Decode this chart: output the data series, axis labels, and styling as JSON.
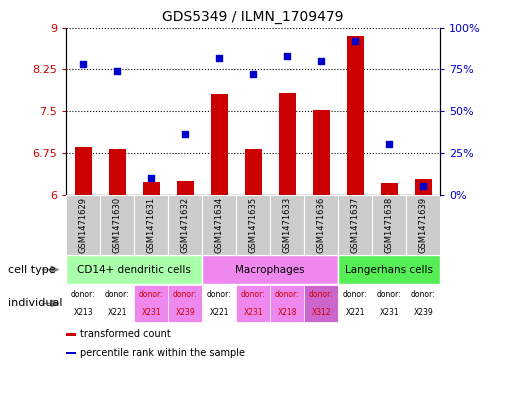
{
  "title": "GDS5349 / ILMN_1709479",
  "samples": [
    "GSM1471629",
    "GSM1471630",
    "GSM1471631",
    "GSM1471632",
    "GSM1471634",
    "GSM1471635",
    "GSM1471633",
    "GSM1471636",
    "GSM1471637",
    "GSM1471638",
    "GSM1471639"
  ],
  "transformed_count": [
    6.85,
    6.82,
    6.22,
    6.25,
    7.8,
    6.82,
    7.82,
    7.52,
    8.85,
    6.2,
    6.28
  ],
  "percentile_rank": [
    78,
    74,
    10,
    36,
    82,
    72,
    83,
    80,
    92,
    30,
    5
  ],
  "ylim_left": [
    6,
    9
  ],
  "ylim_right": [
    0,
    100
  ],
  "yticks_left": [
    6,
    6.75,
    7.5,
    8.25,
    9
  ],
  "yticks_right": [
    0,
    25,
    50,
    75,
    100
  ],
  "ytick_labels_left": [
    "6",
    "6.75",
    "7.5",
    "8.25",
    "9"
  ],
  "ytick_labels_right": [
    "0%",
    "25%",
    "50%",
    "75%",
    "100%"
  ],
  "bar_color": "#cc0000",
  "dot_color": "#0000cc",
  "cell_types": [
    {
      "label": "CD14+ dendritic cells",
      "start": 0,
      "end": 3,
      "color": "#aaffaa"
    },
    {
      "label": "Macrophages",
      "start": 4,
      "end": 7,
      "color": "#ee88ee"
    },
    {
      "label": "Langerhans cells",
      "start": 8,
      "end": 10,
      "color": "#55ee55"
    }
  ],
  "individuals": [
    {
      "donor": "X213",
      "col": 0,
      "color": "#ffffff",
      "text_color": "#000000"
    },
    {
      "donor": "X221",
      "col": 1,
      "color": "#ffffff",
      "text_color": "#000000"
    },
    {
      "donor": "X231",
      "col": 2,
      "color": "#ee88ee",
      "text_color": "#cc0000"
    },
    {
      "donor": "X239",
      "col": 3,
      "color": "#ee88ee",
      "text_color": "#cc0000"
    },
    {
      "donor": "X221",
      "col": 4,
      "color": "#ffffff",
      "text_color": "#000000"
    },
    {
      "donor": "X231",
      "col": 5,
      "color": "#ee88ee",
      "text_color": "#cc0000"
    },
    {
      "donor": "X218",
      "col": 6,
      "color": "#ee88ee",
      "text_color": "#cc0000"
    },
    {
      "donor": "X312",
      "col": 7,
      "color": "#cc66cc",
      "text_color": "#cc0000"
    },
    {
      "donor": "X221",
      "col": 8,
      "color": "#ffffff",
      "text_color": "#000000"
    },
    {
      "donor": "X231",
      "col": 9,
      "color": "#ffffff",
      "text_color": "#000000"
    },
    {
      "donor": "X239",
      "col": 10,
      "color": "#ffffff",
      "text_color": "#000000"
    }
  ],
  "legend_items": [
    {
      "color": "#cc0000",
      "label": "transformed count"
    },
    {
      "color": "#0000cc",
      "label": "percentile rank within the sample"
    }
  ],
  "gsm_area_color": "#cccccc",
  "ylabel_left_color": "#cc0000",
  "ylabel_right_color": "#0000cc",
  "figsize": [
    5.09,
    3.93
  ],
  "dpi": 100
}
